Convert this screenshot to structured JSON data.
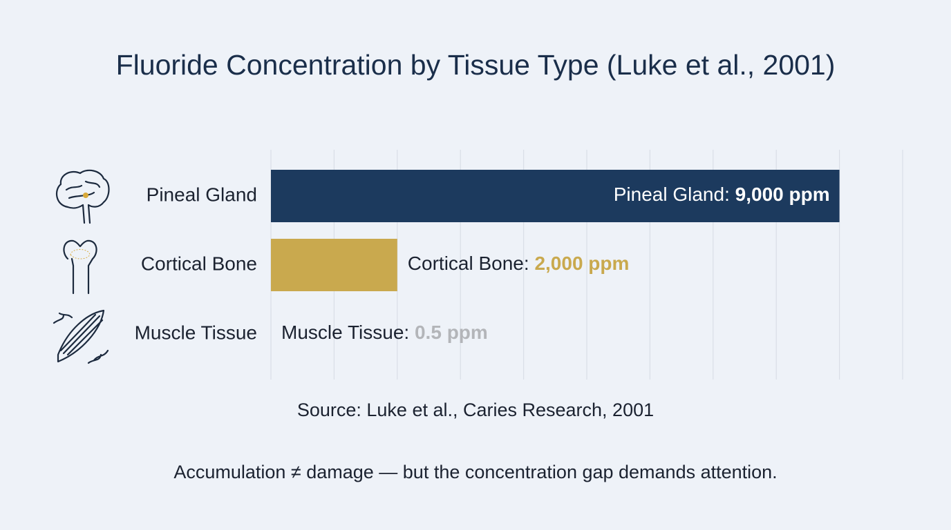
{
  "chart_data": {
    "type": "hbar",
    "title": "Fluoride Concentration by Tissue Type (Luke et al., 2001)",
    "categories": [
      "Pineal Gland",
      "Cortical Bone",
      "Muscle Tissue"
    ],
    "values": [
      9000,
      2000,
      0.5
    ],
    "value_labels": [
      "9,000 ppm",
      "2,000 ppm",
      "0.5 ppm"
    ],
    "label_names": [
      "Pineal Gland:",
      "Cortical Bone:",
      "Muscle Tissue:"
    ],
    "colors": [
      "#1c3a5e",
      "#c9a94e",
      "#c4c6ca"
    ],
    "xlim": [
      0,
      10000
    ],
    "xticks": [
      0,
      1000,
      2000,
      3000,
      4000,
      5000,
      6000,
      7000,
      8000,
      9000,
      10000
    ],
    "grid": true,
    "source": "Source: Luke et al., Caries Research, 2001",
    "footnote": "Accumulation ≠ damage — but the concentration gap demands attention."
  }
}
